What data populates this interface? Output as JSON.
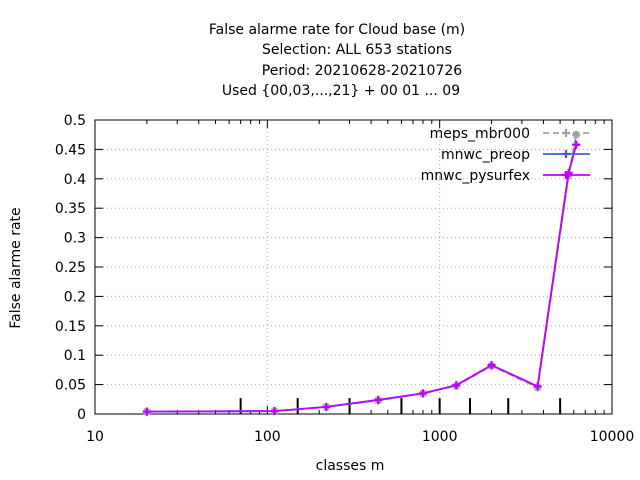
{
  "chart_data": {
    "type": "line",
    "title_lines": [
      "False alarme rate  for Cloud base (m)",
      "Selection: ALL    653 stations",
      "Period: 20210628-20210726",
      "Used {00,03,...,21} + 00 01 ... 09"
    ],
    "xlabel": "classes m",
    "ylabel": "False alarme rate",
    "x_scale": "log",
    "xlim": [
      10,
      10000
    ],
    "ylim": [
      0,
      0.5
    ],
    "x_ticks": [
      10,
      100,
      1000,
      10000
    ],
    "x_tick_labels": [
      "10",
      "100",
      "1000",
      "10000"
    ],
    "y_ticks": [
      0,
      0.05,
      0.1,
      0.15,
      0.2,
      0.25,
      0.3,
      0.35,
      0.4,
      0.45,
      0.5
    ],
    "y_tick_labels": [
      "0",
      "0.05",
      "0.1",
      "0.15",
      "0.2",
      "0.25",
      "0.3",
      "0.35",
      "0.4",
      "0.45",
      "0.5"
    ],
    "grid": true,
    "legend_position": "top-right",
    "class_boundary_ticks": [
      70,
      150,
      300,
      600,
      1000,
      1500,
      2500,
      5000
    ],
    "series": [
      {
        "name": "meps_mbr000",
        "color": "#a0a0a0",
        "dashed": true,
        "x": [
          20,
          110,
          220,
          440,
          800,
          1250,
          2000,
          3700,
          5600,
          6200
        ],
        "y": [
          0.004,
          0.005,
          0.012,
          0.023,
          0.035,
          0.048,
          0.082,
          0.045,
          0.405,
          0.475
        ]
      },
      {
        "name": "mnwc_preop",
        "color": "#4060d0",
        "dashed": false,
        "x": [
          20,
          110,
          220,
          440,
          800,
          1250,
          2000,
          3700,
          5600,
          6200
        ],
        "y": [
          0.004,
          0.005,
          0.012,
          0.024,
          0.035,
          0.049,
          0.083,
          0.047,
          0.41,
          0.458
        ]
      },
      {
        "name": "mnwc_pysurfex",
        "color": "#c000ff",
        "dashed": false,
        "x": [
          20,
          110,
          220,
          440,
          800,
          1250,
          2000,
          3700,
          5600,
          6200
        ],
        "y": [
          0.004,
          0.005,
          0.012,
          0.024,
          0.035,
          0.049,
          0.083,
          0.047,
          0.41,
          0.458
        ]
      }
    ]
  }
}
